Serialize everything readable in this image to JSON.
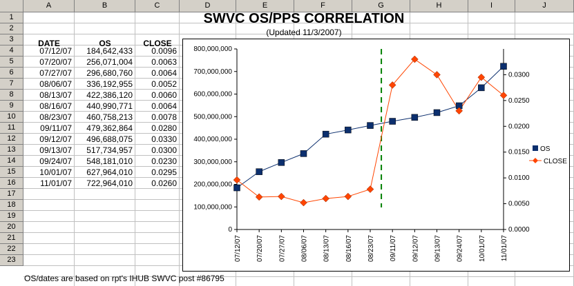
{
  "columns": [
    "A",
    "B",
    "C",
    "D",
    "E",
    "F",
    "G",
    "H",
    "I",
    "J"
  ],
  "rows": [
    "1",
    "2",
    "3",
    "4",
    "5",
    "6",
    "7",
    "8",
    "9",
    "10",
    "11",
    "12",
    "13",
    "14",
    "15",
    "16",
    "17",
    "18",
    "19",
    "20",
    "21",
    "22",
    "23"
  ],
  "sheet": {
    "title": "SWVC OS/PPS CORRELATION",
    "subtitle": "(Updated 11/3/2007)",
    "headers": {
      "date": "DATE",
      "os": "OS",
      "close": "CLOSE"
    },
    "data_rows": [
      {
        "date": "07/12/07",
        "os": "184,642,433",
        "close": "0.0096"
      },
      {
        "date": "07/20/07",
        "os": "256,071,004",
        "close": "0.0063"
      },
      {
        "date": "07/27/07",
        "os": "296,680,760",
        "close": "0.0064"
      },
      {
        "date": "08/06/07",
        "os": "336,192,955",
        "close": "0.0052"
      },
      {
        "date": "08/13/07",
        "os": "422,386,120",
        "close": "0.0060"
      },
      {
        "date": "08/16/07",
        "os": "440,990,771",
        "close": "0.0064"
      },
      {
        "date": "08/23/07",
        "os": "460,758,213",
        "close": "0.0078"
      },
      {
        "date": "09/11/07",
        "os": "479,362,864",
        "close": "0.0280"
      },
      {
        "date": "09/12/07",
        "os": "496,688,075",
        "close": "0.0330"
      },
      {
        "date": "09/13/07",
        "os": "517,734,957",
        "close": "0.0300"
      },
      {
        "date": "09/24/07",
        "os": "548,181,010",
        "close": "0.0230"
      },
      {
        "date": "10/01/07",
        "os": "627,964,010",
        "close": "0.0295"
      },
      {
        "date": "11/01/07",
        "os": "722,964,010",
        "close": "0.0260"
      }
    ],
    "note": "OS/dates are based on rpt's IHUB SWVC post #86795"
  },
  "chart_data": {
    "type": "line",
    "title": "",
    "categories": [
      "07/12/07",
      "07/20/07",
      "07/27/07",
      "08/06/07",
      "08/13/07",
      "08/16/07",
      "08/23/07",
      "09/11/07",
      "09/12/07",
      "09/13/07",
      "09/24/07",
      "10/01/07",
      "11/01/07"
    ],
    "series": [
      {
        "name": "OS",
        "axis": "left",
        "color": "#0c2f6e",
        "values": [
          184642433,
          256071004,
          296680760,
          336192955,
          422386120,
          440990771,
          460758213,
          479362864,
          496688075,
          517734957,
          548181010,
          627964010,
          722964010
        ]
      },
      {
        "name": "CLOSE",
        "axis": "right",
        "color": "#ff4500",
        "values": [
          0.0096,
          0.0063,
          0.0064,
          0.0052,
          0.006,
          0.0064,
          0.0078,
          0.028,
          0.033,
          0.03,
          0.023,
          0.0295,
          0.026
        ]
      }
    ],
    "left_axis": {
      "ylim": [
        0,
        800000000
      ],
      "ticks": [
        "0",
        "100,000,000",
        "200,000,000",
        "300,000,000",
        "400,000,000",
        "500,000,000",
        "600,000,000",
        "700,000,000",
        "800,000,000"
      ]
    },
    "right_axis": {
      "ylim": [
        0,
        0.035
      ],
      "ticks": [
        "0.0000",
        "0.0050",
        "0.0100",
        "0.0150",
        "0.0200",
        "0.0250",
        "0.0300"
      ]
    },
    "marker_line": {
      "between": [
        "08/23/07",
        "09/11/07"
      ],
      "color": "#008000",
      "style": "dashed"
    },
    "legend": {
      "position": "right",
      "entries": [
        "OS",
        "CLOSE"
      ]
    }
  }
}
